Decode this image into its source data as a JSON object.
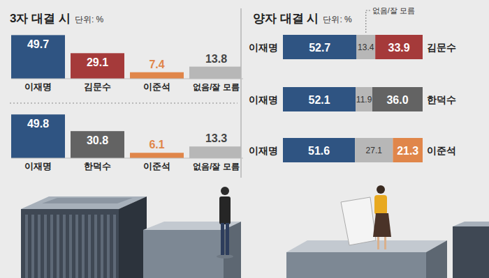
{
  "chart_data": [
    {
      "type": "bar",
      "title": "3자 대결 시",
      "subtitle": "단위: %",
      "categories": [
        "이재명",
        "김문수",
        "이준석",
        "없음/잘 모름"
      ],
      "values": [
        49.7,
        29.1,
        7.4,
        13.8
      ],
      "colors": [
        "#2f5482",
        "#a53a3a",
        "#e0864a",
        "#b7b7b7"
      ],
      "ylim": [
        0,
        50
      ],
      "data_labels": true,
      "tick_labels": "x"
    },
    {
      "type": "bar",
      "categories": [
        "이재명",
        "한덕수",
        "이준석",
        "없음/잘 모름"
      ],
      "values": [
        49.8,
        30.8,
        6.1,
        13.3
      ],
      "colors": [
        "#2f5482",
        "#636363",
        "#e0864a",
        "#b7b7b7"
      ],
      "ylim": [
        0,
        50
      ],
      "data_labels": true,
      "tick_labels": "x"
    },
    {
      "type": "bar",
      "title": "양자 대결 시",
      "subtitle": "단위: %",
      "orientation": "horizontal",
      "stacked": true,
      "categories": [
        "김문수",
        "한덕수",
        "이준석"
      ],
      "series": [
        {
          "name": "이재명",
          "color": "#2f5482",
          "values": [
            52.7,
            52.1,
            51.6
          ]
        },
        {
          "name": "없음/잘 모름",
          "color": "#b7b7b7",
          "values": [
            13.4,
            11.9,
            27.1
          ]
        },
        {
          "colors": [
            "#a53a3a",
            "#636363",
            "#e0864a"
          ],
          "values": [
            33.9,
            36.0,
            21.3
          ],
          "value_labels": [
            "33.9",
            "36.0",
            "21.3"
          ]
        }
      ],
      "xlim": [
        0,
        100
      ],
      "data_labels": true,
      "tick_labels": "y"
    }
  ]
}
